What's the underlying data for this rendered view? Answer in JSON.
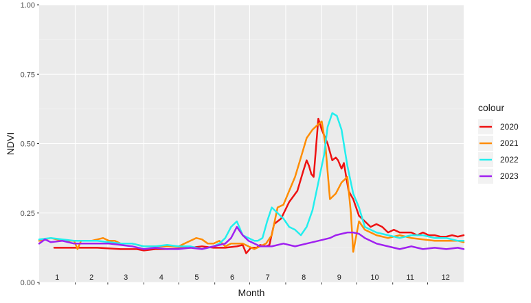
{
  "chart_data": {
    "type": "line",
    "xlabel": "Month",
    "ylabel": "NDVI",
    "ylim": [
      0,
      1
    ],
    "xlim": [
      0,
      365
    ],
    "yticks": [
      "0.00",
      "0.25",
      "0.50",
      "0.75",
      "1.00"
    ],
    "ytick_values": [
      0,
      0.25,
      0.5,
      0.75,
      1.0
    ],
    "month_labels": [
      "1",
      "2",
      "3",
      "4",
      "5",
      "6",
      "7",
      "8",
      "9",
      "10",
      "11",
      "12"
    ],
    "grid": true,
    "legend_position": "right",
    "legend_title": "colour",
    "series": [
      {
        "name": "2020",
        "color": "#ee1111",
        "x": [
          13,
          30,
          50,
          70,
          84,
          90,
          100,
          110,
          130,
          140,
          150,
          160,
          170,
          175,
          178,
          182,
          187,
          190,
          195,
          198,
          202,
          208,
          215,
          222,
          227,
          230,
          232,
          234,
          236,
          240,
          243,
          248,
          252,
          255,
          257,
          260,
          262,
          266,
          270,
          275,
          280,
          285,
          290,
          295,
          300,
          305,
          310,
          315,
          320,
          325,
          330,
          335,
          340,
          345,
          350,
          355,
          360,
          365
        ],
        "values": [
          0.125,
          0.125,
          0.125,
          0.12,
          0.12,
          0.115,
          0.12,
          0.12,
          0.125,
          0.13,
          0.125,
          0.125,
          0.13,
          0.135,
          0.105,
          0.125,
          0.125,
          0.135,
          0.13,
          0.135,
          0.21,
          0.23,
          0.29,
          0.33,
          0.4,
          0.44,
          0.42,
          0.39,
          0.38,
          0.59,
          0.55,
          0.5,
          0.44,
          0.45,
          0.44,
          0.41,
          0.43,
          0.33,
          0.3,
          0.24,
          0.22,
          0.2,
          0.21,
          0.2,
          0.18,
          0.19,
          0.18,
          0.18,
          0.18,
          0.17,
          0.18,
          0.17,
          0.17,
          0.165,
          0.165,
          0.17,
          0.165,
          0.17
        ]
      },
      {
        "name": "2021",
        "color": "#ff8c00",
        "x": [
          0,
          10,
          20,
          30,
          33,
          36,
          45,
          55,
          60,
          65,
          70,
          80,
          90,
          100,
          110,
          120,
          125,
          130,
          135,
          140,
          145,
          150,
          155,
          160,
          165,
          170,
          175,
          180,
          185,
          190,
          195,
          200,
          205,
          210,
          215,
          220,
          225,
          230,
          235,
          240,
          243,
          246,
          250,
          255,
          260,
          265,
          268,
          270,
          275,
          280,
          290,
          300,
          310,
          320,
          330,
          340,
          350,
          360,
          365
        ],
        "values": [
          0.15,
          0.16,
          0.15,
          0.15,
          0.12,
          0.15,
          0.15,
          0.16,
          0.15,
          0.15,
          0.14,
          0.14,
          0.13,
          0.13,
          0.13,
          0.13,
          0.14,
          0.15,
          0.16,
          0.155,
          0.14,
          0.14,
          0.15,
          0.13,
          0.14,
          0.14,
          0.14,
          0.13,
          0.12,
          0.13,
          0.14,
          0.17,
          0.27,
          0.28,
          0.33,
          0.38,
          0.45,
          0.52,
          0.55,
          0.57,
          0.58,
          0.5,
          0.3,
          0.32,
          0.36,
          0.38,
          0.25,
          0.11,
          0.22,
          0.19,
          0.17,
          0.16,
          0.17,
          0.16,
          0.155,
          0.15,
          0.15,
          0.15,
          0.145
        ]
      },
      {
        "name": "2022",
        "color": "#22eeee",
        "x": [
          0,
          10,
          20,
          30,
          40,
          50,
          60,
          70,
          80,
          90,
          100,
          110,
          120,
          130,
          140,
          150,
          155,
          160,
          165,
          170,
          175,
          180,
          185,
          188,
          192,
          196,
          200,
          205,
          210,
          215,
          220,
          225,
          230,
          235,
          240,
          245,
          248,
          252,
          256,
          260,
          265,
          270,
          275,
          280,
          290,
          300,
          310,
          320,
          330,
          340,
          350,
          360,
          365
        ],
        "values": [
          0.155,
          0.16,
          0.155,
          0.15,
          0.15,
          0.15,
          0.145,
          0.14,
          0.14,
          0.13,
          0.13,
          0.135,
          0.13,
          0.13,
          0.12,
          0.13,
          0.14,
          0.16,
          0.2,
          0.22,
          0.17,
          0.16,
          0.15,
          0.15,
          0.16,
          0.22,
          0.27,
          0.25,
          0.23,
          0.2,
          0.19,
          0.17,
          0.2,
          0.26,
          0.36,
          0.46,
          0.56,
          0.61,
          0.6,
          0.55,
          0.42,
          0.32,
          0.27,
          0.2,
          0.18,
          0.17,
          0.16,
          0.17,
          0.17,
          0.16,
          0.16,
          0.15,
          0.15
        ]
      },
      {
        "name": "2023",
        "color": "#a020f0",
        "x": [
          0,
          5,
          10,
          20,
          30,
          40,
          50,
          60,
          70,
          80,
          90,
          100,
          110,
          120,
          130,
          140,
          150,
          160,
          165,
          170,
          175,
          180,
          185,
          190,
          200,
          210,
          220,
          230,
          240,
          250,
          255,
          260,
          265,
          270,
          275,
          280,
          290,
          300,
          310,
          320,
          330,
          340,
          350,
          360,
          365
        ],
        "values": [
          0.14,
          0.155,
          0.145,
          0.15,
          0.14,
          0.14,
          0.14,
          0.14,
          0.135,
          0.13,
          0.12,
          0.125,
          0.12,
          0.12,
          0.125,
          0.12,
          0.13,
          0.14,
          0.16,
          0.2,
          0.17,
          0.15,
          0.14,
          0.13,
          0.13,
          0.14,
          0.13,
          0.14,
          0.15,
          0.16,
          0.17,
          0.175,
          0.18,
          0.18,
          0.175,
          0.16,
          0.14,
          0.13,
          0.12,
          0.13,
          0.12,
          0.125,
          0.12,
          0.125,
          0.12
        ]
      }
    ]
  }
}
